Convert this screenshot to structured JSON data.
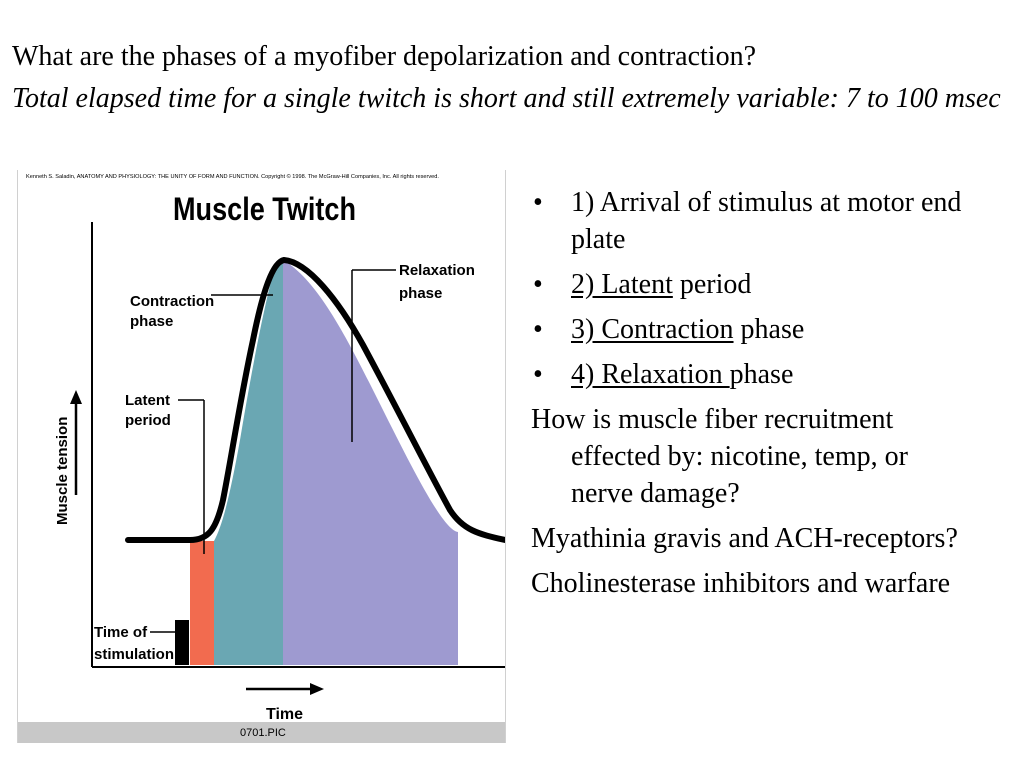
{
  "title": {
    "question": "What are the phases of a myofiber depolarization and contraction?",
    "subtitle": "Total elapsed time for a single twitch is short and still extremely variable: 7 to 100 msec"
  },
  "figure": {
    "credit": "Kenneth S. Saladin, ANATOMY AND PHYSIOLOGY: THE UNITY OF FORM AND FUNCTION. Copyright © 1998. The McGraw-Hill Companies, Inc.  All rights reserved.",
    "heading": "Muscle Twitch",
    "ylabel": "Muscle tension",
    "xlabel": "Time",
    "caption": "0701.PIC",
    "labels": {
      "contraction_1": "Contraction",
      "contraction_2": "phase",
      "relaxation_1": "Relaxation",
      "relaxation_2": "phase",
      "latent_1": "Latent",
      "latent_2": "period",
      "stim_1": "Time of",
      "stim_2": "stimulation"
    },
    "colors": {
      "latent": "#f26b4f",
      "contraction": "#6aa7b3",
      "relaxation": "#9e9ad0",
      "caption_bar": "#c8c8c8"
    }
  },
  "bullets": [
    {
      "bullet": "•",
      "plain": "1) Arrival of stimulus at motor end plate"
    },
    {
      "bullet": "•",
      "underlined": "2) Latent",
      "rest": " period"
    },
    {
      "bullet": "•",
      "underlined": "3) Contraction",
      "rest": " phase"
    },
    {
      "bullet": "•",
      "underlined": "4) Relaxation ",
      "rest": "phase"
    }
  ],
  "questions": [
    "How is muscle fiber recruitment effected by: nicotine, temp, or nerve damage?",
    "Myathinia gravis and  ACH-receptors?",
    "Cholinesterase inhibitors and warfare"
  ]
}
